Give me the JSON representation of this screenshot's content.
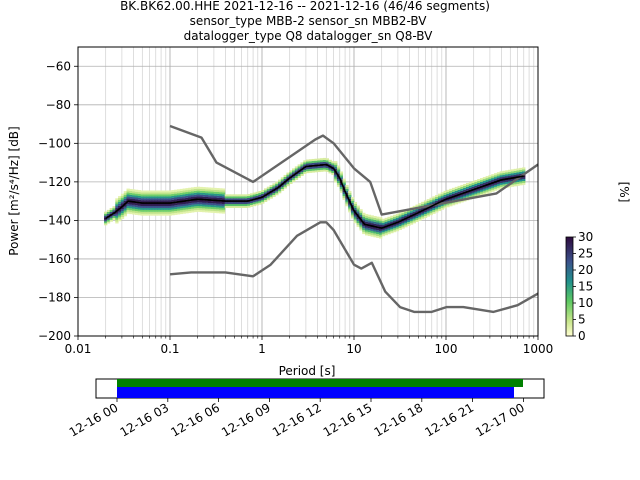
{
  "title_lines": [
    "BK.BK62.00.HHE   2021-12-16 -- 2021-12-16  (46/46 segments)",
    "sensor_type MBB-2 sensor_sn MBB2-BV",
    "datalogger_type Q8 datalogger_sn Q8-BV"
  ],
  "chart_data": [
    {
      "type": "heatmap",
      "xlabel": "Period [s]",
      "ylabel": "Power [m²/s⁴/Hz] [dB]",
      "xscale": "log",
      "xlim": [
        0.01,
        1000
      ],
      "ylim": [
        -200,
        -50
      ],
      "xticks": [
        0.01,
        0.1,
        1,
        10,
        100,
        1000
      ],
      "xtick_labels": [
        "0.01",
        "0.1",
        "1",
        "10",
        "100",
        "1000"
      ],
      "yticks": [
        -60,
        -80,
        -100,
        -120,
        -140,
        -160,
        -180,
        -200
      ],
      "grid": true,
      "colorbar": {
        "label": "[%]",
        "ticks": [
          0,
          5,
          10,
          15,
          20,
          25,
          30
        ],
        "range": [
          0,
          30
        ],
        "colormap": "viridis_r"
      },
      "noise_models": {
        "color": "#666666",
        "high": [
          [
            0.1,
            -91
          ],
          [
            0.22,
            -97
          ],
          [
            0.32,
            -110
          ],
          [
            0.8,
            -120
          ],
          [
            3.8,
            -98
          ],
          [
            4.6,
            -96
          ],
          [
            6,
            -100
          ],
          [
            10,
            -113
          ],
          [
            15,
            -120
          ],
          [
            20,
            -137
          ],
          [
            354,
            -126
          ],
          [
            1000,
            -111
          ]
        ],
        "low": [
          [
            0.1,
            -168
          ],
          [
            0.17,
            -167
          ],
          [
            0.4,
            -167
          ],
          [
            0.8,
            -169
          ],
          [
            1.24,
            -163
          ],
          [
            2.4,
            -148
          ],
          [
            4.3,
            -141
          ],
          [
            5,
            -141
          ],
          [
            6,
            -145
          ],
          [
            10,
            -163
          ],
          [
            12,
            -165
          ],
          [
            15.6,
            -162
          ],
          [
            21.9,
            -177
          ],
          [
            31.6,
            -185
          ],
          [
            45,
            -187.5
          ],
          [
            70,
            -187.5
          ],
          [
            101,
            -185
          ],
          [
            154,
            -185
          ],
          [
            328,
            -187.5
          ],
          [
            600,
            -184
          ],
          [
            1000,
            -178
          ]
        ]
      },
      "mean_curve": [
        [
          0.02,
          -139
        ],
        [
          0.025,
          -136
        ],
        [
          0.03,
          -133
        ],
        [
          0.035,
          -130
        ],
        [
          0.05,
          -131
        ],
        [
          0.1,
          -131
        ],
        [
          0.2,
          -129
        ],
        [
          0.4,
          -130
        ],
        [
          0.7,
          -130
        ],
        [
          1,
          -128
        ],
        [
          1.5,
          -123
        ],
        [
          2,
          -118
        ],
        [
          3,
          -112
        ],
        [
          5,
          -111
        ],
        [
          6,
          -113
        ],
        [
          7,
          -118
        ],
        [
          8,
          -125
        ],
        [
          10,
          -135
        ],
        [
          13,
          -142
        ],
        [
          20,
          -144
        ],
        [
          30,
          -141
        ],
        [
          50,
          -136
        ],
        [
          100,
          -129
        ],
        [
          200,
          -124
        ],
        [
          400,
          -119
        ],
        [
          700,
          -117
        ]
      ]
    },
    {
      "type": "timeline",
      "xtick_labels": [
        "12-16 00",
        "12-16 03",
        "12-16 06",
        "12-16 09",
        "12-16 12",
        "12-16 15",
        "12-16 18",
        "12-16 21",
        "12-17 00"
      ],
      "data_available": {
        "start": "12-16 00:00",
        "end": "12-17 00:25",
        "color": "#008000"
      },
      "used_in_psd": {
        "start": "12-16 00:00",
        "end": "12-16 23:30",
        "color": "#0000ff"
      }
    }
  ]
}
